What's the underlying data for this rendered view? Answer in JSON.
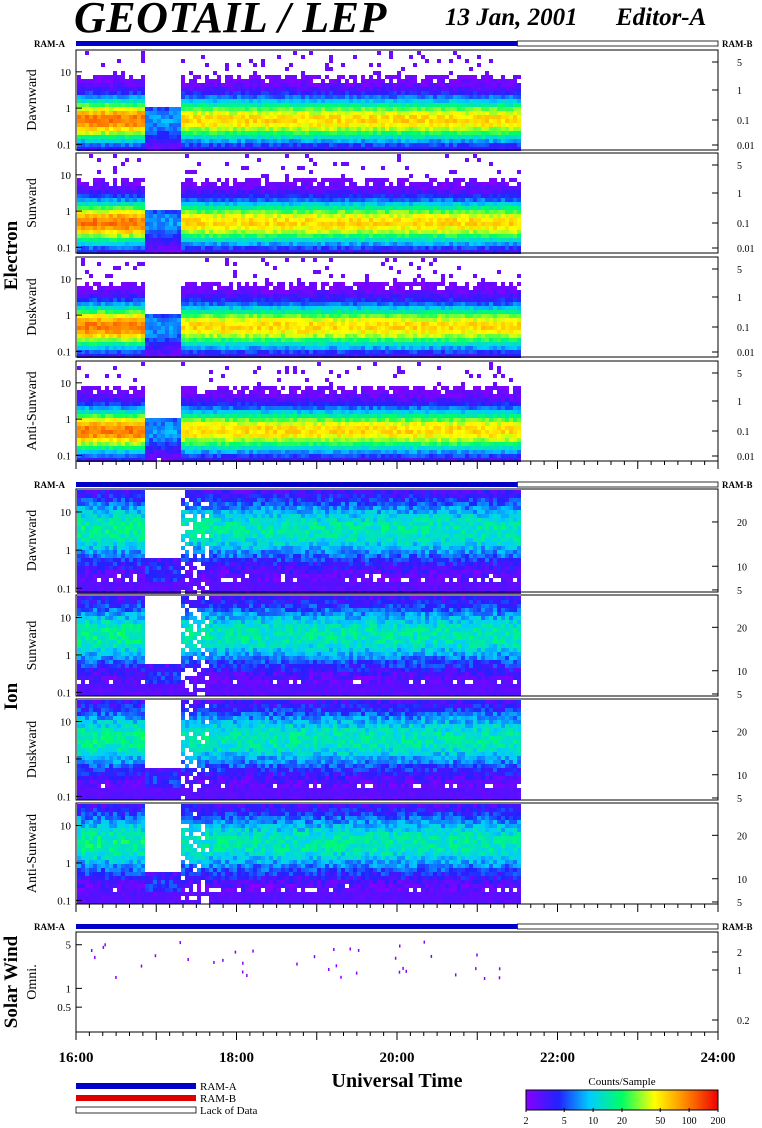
{
  "header": {
    "title": "GEOTAIL / LEP",
    "date": "13 Jan, 2001",
    "editor": "Editor-A"
  },
  "ram": {
    "left_label": "RAM-A",
    "right_label": "RAM-B"
  },
  "groups": [
    {
      "name": "Electron",
      "panels": [
        "Dawnward",
        "Sunward",
        "Duskward",
        "Anti-Sunward"
      ]
    },
    {
      "name": "Ion",
      "panels": [
        "Dawnward",
        "Sunward",
        "Duskward",
        "Anti-Sunward"
      ]
    },
    {
      "name": "Solar Wind",
      "panels": [
        "Omni."
      ]
    }
  ],
  "time_axis": {
    "label": "Universal Time",
    "ticks": [
      "16:00",
      "18:00",
      "20:00",
      "22:00",
      "24:00"
    ],
    "start_hour": 16,
    "end_hour": 24,
    "data_end_hour": 21.5
  },
  "legend": {
    "items": [
      {
        "label": "RAM-A",
        "color": "#0000c8"
      },
      {
        "label": "RAM-B",
        "color": "#dd0000"
      },
      {
        "label": "Lack of Data",
        "color": "#ffffff"
      }
    ]
  },
  "colorbar": {
    "title": "Counts/Sample",
    "ticks": [
      "2",
      "5",
      "10",
      "20",
      "50",
      "100",
      "200"
    ]
  },
  "chart_data": [
    {
      "type": "heatmap",
      "title": "Electron Dawnward",
      "ylabel": "Dawnward",
      "y_scale": "log",
      "yticks_left": [
        "0.1",
        "1",
        "10"
      ],
      "yticks_right": [
        "0.01",
        "0.1",
        "1",
        "5"
      ],
      "xlim": [
        "16:00",
        "24:00"
      ],
      "zlim": [
        2,
        200
      ],
      "data_coverage": [
        "16:00",
        "21:30"
      ],
      "ram_mode": [
        {
          "mode": "RAM-A",
          "from": "16:00",
          "to": "21:30"
        },
        {
          "mode": "Lack of Data",
          "from": "21:30",
          "to": "24:00"
        }
      ]
    },
    {
      "type": "heatmap",
      "title": "Electron Sunward",
      "ylabel": "Sunward",
      "y_scale": "log",
      "yticks_left": [
        "0.1",
        "1",
        "10"
      ],
      "yticks_right": [
        "0.01",
        "0.1",
        "1",
        "5"
      ],
      "xlim": [
        "16:00",
        "24:00"
      ],
      "zlim": [
        2,
        200
      ],
      "data_coverage": [
        "16:00",
        "21:30"
      ]
    },
    {
      "type": "heatmap",
      "title": "Electron Duskward",
      "ylabel": "Duskward",
      "y_scale": "log",
      "yticks_left": [
        "0.1",
        "1",
        "10"
      ],
      "yticks_right": [
        "0.01",
        "0.1",
        "1",
        "5"
      ],
      "xlim": [
        "16:00",
        "24:00"
      ],
      "zlim": [
        2,
        200
      ],
      "data_coverage": [
        "16:00",
        "21:30"
      ]
    },
    {
      "type": "heatmap",
      "title": "Electron Anti-Sunward",
      "ylabel": "Anti-Sunward",
      "y_scale": "log",
      "yticks_left": [
        "0.1",
        "1",
        "10"
      ],
      "yticks_right": [
        "0.01",
        "0.1",
        "1",
        "5"
      ],
      "xlim": [
        "16:00",
        "24:00"
      ],
      "zlim": [
        2,
        200
      ],
      "data_coverage": [
        "16:00",
        "21:30"
      ]
    },
    {
      "type": "heatmap",
      "title": "Ion Dawnward",
      "ylabel": "Dawnward",
      "y_scale": "log",
      "yticks_left": [
        "0.1",
        "1",
        "10"
      ],
      "yticks_right": [
        "5",
        "10",
        "20"
      ],
      "xlim": [
        "16:00",
        "24:00"
      ],
      "zlim": [
        2,
        200
      ],
      "data_coverage": [
        "16:00",
        "21:30"
      ],
      "ram_mode": [
        {
          "mode": "RAM-A",
          "from": "16:00",
          "to": "21:30"
        },
        {
          "mode": "Lack of Data",
          "from": "21:30",
          "to": "24:00"
        }
      ]
    },
    {
      "type": "heatmap",
      "title": "Ion Sunward",
      "ylabel": "Sunward",
      "y_scale": "log",
      "yticks_left": [
        "0.1",
        "1",
        "10"
      ],
      "yticks_right": [
        "5",
        "10",
        "20"
      ],
      "xlim": [
        "16:00",
        "24:00"
      ],
      "zlim": [
        2,
        200
      ],
      "data_coverage": [
        "16:00",
        "21:30"
      ]
    },
    {
      "type": "heatmap",
      "title": "Ion Duskward",
      "ylabel": "Duskward",
      "y_scale": "log",
      "yticks_left": [
        "0.1",
        "1",
        "10"
      ],
      "yticks_right": [
        "5",
        "10",
        "20"
      ],
      "xlim": [
        "16:00",
        "24:00"
      ],
      "zlim": [
        2,
        200
      ],
      "data_coverage": [
        "16:00",
        "21:30"
      ]
    },
    {
      "type": "heatmap",
      "title": "Ion Anti-Sunward",
      "ylabel": "Anti-Sunward",
      "y_scale": "log",
      "yticks_left": [
        "0.1",
        "1",
        "10"
      ],
      "yticks_right": [
        "5",
        "10",
        "20"
      ],
      "xlim": [
        "16:00",
        "24:00"
      ],
      "zlim": [
        2,
        200
      ],
      "data_coverage": [
        "16:00",
        "21:30"
      ]
    },
    {
      "type": "heatmap",
      "title": "Solar Wind Omni.",
      "ylabel": "Omni.",
      "y_scale": "log",
      "yticks_left": [
        "0.5",
        "1",
        "5"
      ],
      "yticks_right": [
        "0.2",
        "1",
        "2"
      ],
      "xlim": [
        "16:00",
        "24:00"
      ],
      "zlim": [
        2,
        200
      ],
      "data_coverage": [
        "16:00",
        "21:30"
      ],
      "ram_mode": [
        {
          "mode": "RAM-A",
          "from": "16:00",
          "to": "21:30"
        },
        {
          "mode": "Lack of Data",
          "from": "21:30",
          "to": "24:00"
        }
      ]
    }
  ]
}
